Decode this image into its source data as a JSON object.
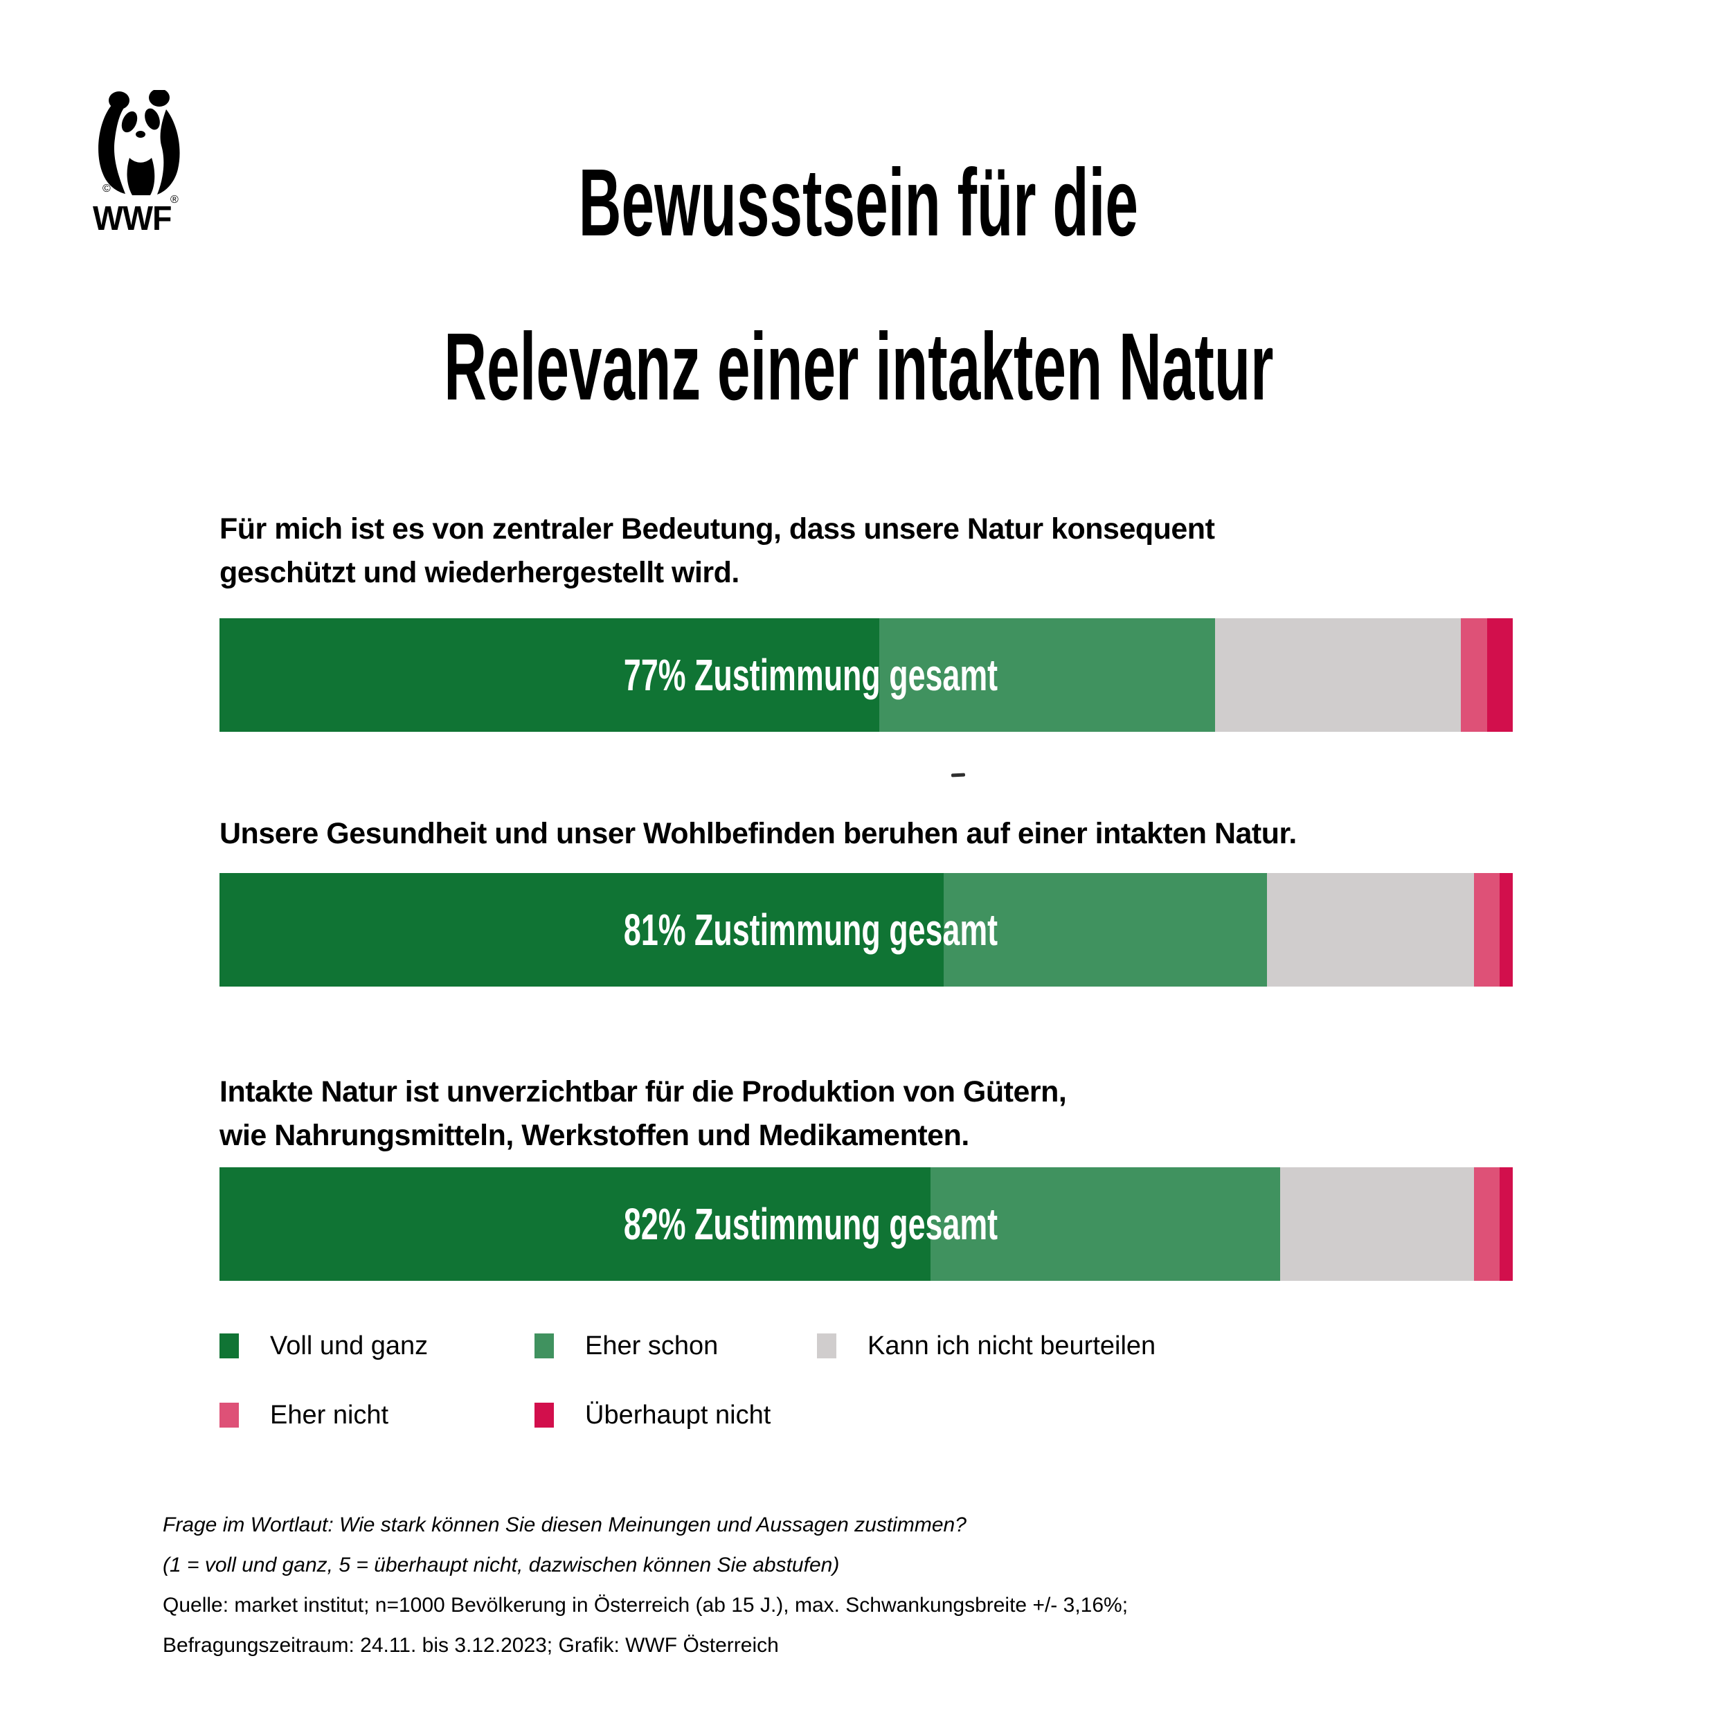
{
  "logo": {
    "brand": "WWF",
    "copyright": "©",
    "registered": "®"
  },
  "title": {
    "line1": "Bewusstsein für die",
    "line2": "Relevanz einer intakten Natur"
  },
  "colors": {
    "voll_und_ganz": "#107434",
    "eher_schon": "#40925F",
    "kann_ich_nicht_beurteilen": "#D0CDCD",
    "eher_nicht": "#DE5177",
    "ueberhaupt_nicht": "#D20F4C"
  },
  "chart_data": {
    "type": "bar",
    "orientation": "horizontal",
    "stacked": true,
    "value_unit": "percent",
    "xlim": [
      0,
      100
    ],
    "grid": false,
    "legend_position": "bottom",
    "segment_keys": [
      "voll_und_ganz",
      "eher_schon",
      "kann_ich_nicht_beurteilen",
      "eher_nicht",
      "ueberhaupt_nicht"
    ],
    "legend": [
      {
        "key": "voll_und_ganz",
        "label": "Voll und ganz"
      },
      {
        "key": "eher_schon",
        "label": "Eher schon"
      },
      {
        "key": "kann_ich_nicht_beurteilen",
        "label": "Kann ich nicht beurteilen"
      },
      {
        "key": "eher_nicht",
        "label": "Eher nicht"
      },
      {
        "key": "ueberhaupt_nicht",
        "label": "Überhaupt nicht"
      }
    ],
    "bars": [
      {
        "lines": [
          "Für mich ist es von zentraler Bedeutung, dass unsere Natur konsequent",
          "geschützt und wiederhergestellt wird."
        ],
        "bar_label": "77% Zustimmung gesamt",
        "agreement_total_pct": 77,
        "values": {
          "voll_und_ganz": 51,
          "eher_schon": 26,
          "kann_ich_nicht_beurteilen": 19,
          "eher_nicht": 2,
          "ueberhaupt_nicht": 2
        }
      },
      {
        "lines": [
          "Unsere Gesundheit und unser Wohlbefinden beruhen auf einer intakten Natur.",
          ""
        ],
        "bar_label": "81% Zustimmung gesamt",
        "agreement_total_pct": 81,
        "values": {
          "voll_und_ganz": 56,
          "eher_schon": 25,
          "kann_ich_nicht_beurteilen": 16,
          "eher_nicht": 2,
          "ueberhaupt_nicht": 1
        }
      },
      {
        "lines": [
          "Intakte Natur ist unverzichtbar für die Produktion von Gütern,",
          "wie Nahrungsmitteln, Werkstoffen und Medikamenten."
        ],
        "bar_label": "82% Zustimmung gesamt",
        "agreement_total_pct": 82,
        "values": {
          "voll_und_ganz": 55,
          "eher_schon": 27,
          "kann_ich_nicht_beurteilen": 15,
          "eher_nicht": 2,
          "ueberhaupt_nicht": 1
        }
      }
    ]
  },
  "footnote": {
    "line1": "Frage im Wortlaut: Wie stark können Sie diesen Meinungen und Aussagen zustimmen?",
    "line2": "(1 = voll und ganz, 5 = überhaupt nicht, dazwischen können Sie abstufen)",
    "line3": "Quelle: market institut; n=1000 Bevölkerung in Österreich (ab 15 J.), max. Schwankungsbreite +/- 3,16%;",
    "line4": "Befragungszeitraum: 24.11. bis 3.12.2023; Grafik: WWF Österreich"
  }
}
